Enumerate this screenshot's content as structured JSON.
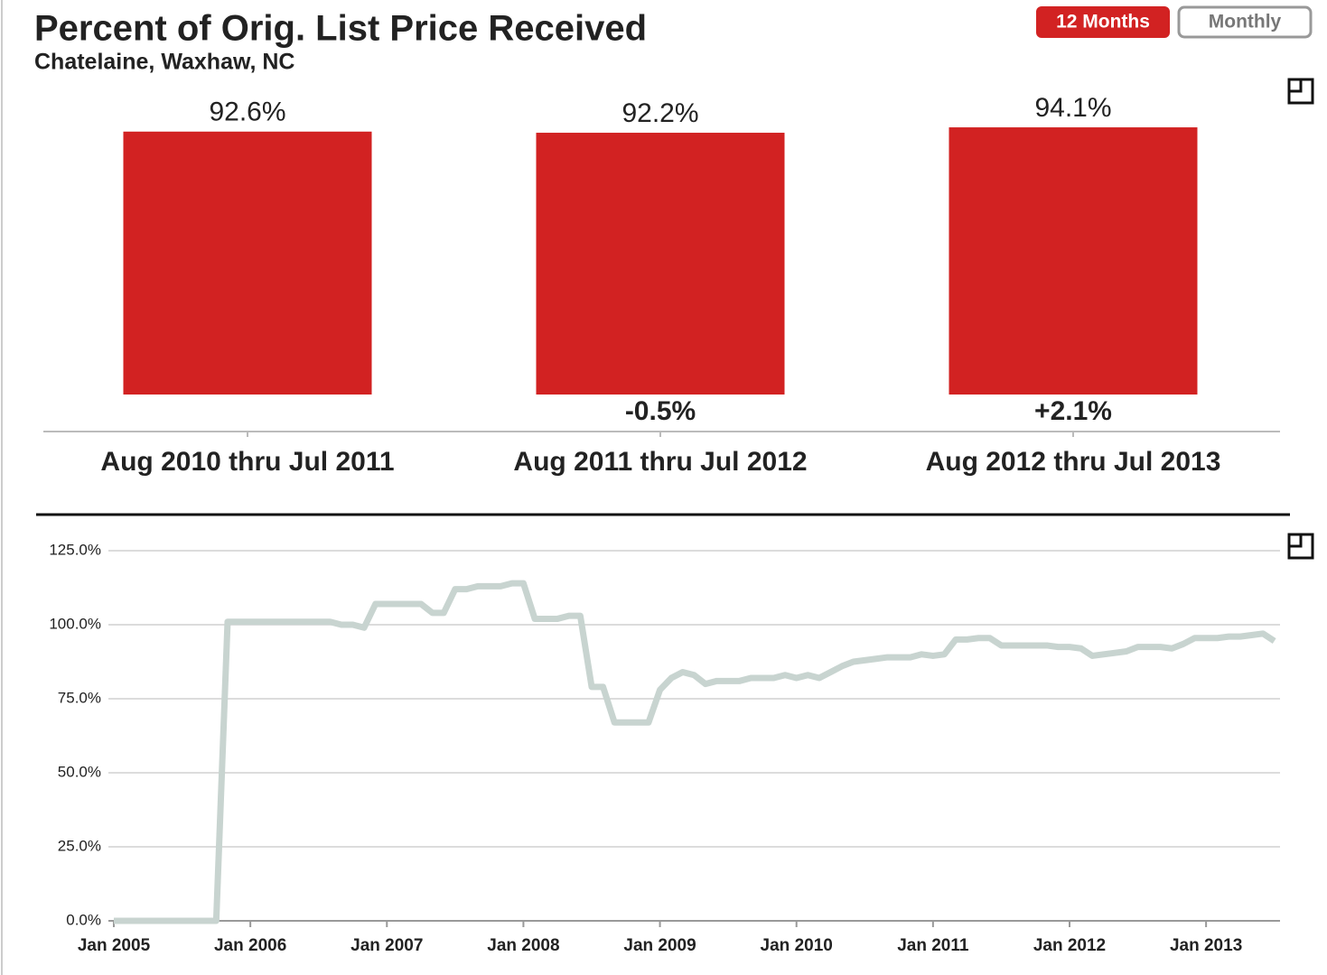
{
  "buttons": [
    "12 Months",
    "Monthly"
  ],
  "chart_data": [
    {
      "type": "bar",
      "title": "Percent of Orig. List Price Received",
      "subtitle": "Chatelaine, Waxhaw, NC",
      "categories": [
        "Aug 2010 thru Jul 2011",
        "Aug 2011 thru Jul 2012",
        "Aug 2012 thru Jul 2013"
      ],
      "values": [
        92.6,
        92.2,
        94.1
      ],
      "value_labels": [
        "92.6%",
        "92.2%",
        "94.1%"
      ],
      "change_labels": [
        null,
        "-0.5%",
        "+2.1%"
      ],
      "color": "#d22222"
    },
    {
      "type": "line",
      "x": [
        "2005-01",
        "2005-02",
        "2005-03",
        "2005-04",
        "2005-05",
        "2005-06",
        "2005-07",
        "2005-08",
        "2005-09",
        "2005-10",
        "2005-11",
        "2005-12",
        "2006-01",
        "2006-02",
        "2006-03",
        "2006-04",
        "2006-05",
        "2006-06",
        "2006-07",
        "2006-08",
        "2006-09",
        "2006-10",
        "2006-11",
        "2006-12",
        "2007-01",
        "2007-02",
        "2007-03",
        "2007-04",
        "2007-05",
        "2007-06",
        "2007-07",
        "2007-08",
        "2007-09",
        "2007-10",
        "2007-11",
        "2007-12",
        "2008-01",
        "2008-02",
        "2008-03",
        "2008-04",
        "2008-05",
        "2008-06",
        "2008-07",
        "2008-08",
        "2008-09",
        "2008-10",
        "2008-11",
        "2008-12",
        "2009-01",
        "2009-02",
        "2009-03",
        "2009-04",
        "2009-05",
        "2009-06",
        "2009-07",
        "2009-08",
        "2009-09",
        "2009-10",
        "2009-11",
        "2009-12",
        "2010-01",
        "2010-02",
        "2010-03",
        "2010-04",
        "2010-05",
        "2010-06",
        "2010-07",
        "2010-08",
        "2010-09",
        "2010-10",
        "2010-11",
        "2010-12",
        "2011-01",
        "2011-02",
        "2011-03",
        "2011-04",
        "2011-05",
        "2011-06",
        "2011-07",
        "2011-08",
        "2011-09",
        "2011-10",
        "2011-11",
        "2011-12",
        "2012-01",
        "2012-02",
        "2012-03",
        "2012-04",
        "2012-05",
        "2012-06",
        "2012-07",
        "2012-08",
        "2012-09",
        "2012-10",
        "2012-11",
        "2012-12",
        "2013-01",
        "2013-02",
        "2013-03",
        "2013-04",
        "2013-05",
        "2013-06",
        "2013-07"
      ],
      "values": [
        0,
        0,
        0,
        0,
        0,
        0,
        0,
        0,
        0,
        0,
        101,
        101,
        101,
        101,
        101,
        101,
        101,
        101,
        101,
        101,
        100,
        100,
        99,
        107,
        107,
        107,
        107,
        107,
        104,
        104,
        112,
        112,
        113,
        113,
        113,
        114,
        114,
        102,
        102,
        102,
        103,
        103,
        79,
        79,
        67,
        67,
        67,
        67,
        78,
        82,
        84,
        83,
        80,
        81,
        81,
        81,
        82,
        82,
        82,
        83,
        82,
        83,
        82,
        84,
        86,
        87.5,
        88,
        88.5,
        89,
        89,
        89,
        90,
        89.5,
        90,
        95,
        95,
        95.5,
        95.5,
        93,
        93,
        93,
        93,
        93,
        92.5,
        92.5,
        92,
        89.5,
        90,
        90.5,
        91,
        92.5,
        92.5,
        92.5,
        92,
        93.5,
        95.5,
        95.5,
        95.5,
        96,
        96,
        96.5,
        97,
        94.5
      ],
      "color": "#c8d4d0",
      "xlim": [
        "2005-01",
        "2013-07"
      ],
      "xticks": [
        {
          "value": "2005-01",
          "label": "Jan 2005"
        },
        {
          "value": "2006-01",
          "label": "Jan 2006"
        },
        {
          "value": "2007-01",
          "label": "Jan 2007"
        },
        {
          "value": "2008-01",
          "label": "Jan 2008"
        },
        {
          "value": "2009-01",
          "label": "Jan 2009"
        },
        {
          "value": "2010-01",
          "label": "Jan 2010"
        },
        {
          "value": "2011-01",
          "label": "Jan 2011"
        },
        {
          "value": "2012-01",
          "label": "Jan 2012"
        },
        {
          "value": "2013-01",
          "label": "Jan 2013"
        }
      ],
      "ylim": [
        0,
        125
      ],
      "yticks": [
        {
          "value": 0,
          "label": "0.0%"
        },
        {
          "value": 25,
          "label": "25.0%"
        },
        {
          "value": 50,
          "label": "50.0%"
        },
        {
          "value": 75,
          "label": "75.0%"
        },
        {
          "value": 100,
          "label": "100.0%"
        },
        {
          "value": 125,
          "label": "125.0%"
        }
      ],
      "grid": true
    }
  ]
}
